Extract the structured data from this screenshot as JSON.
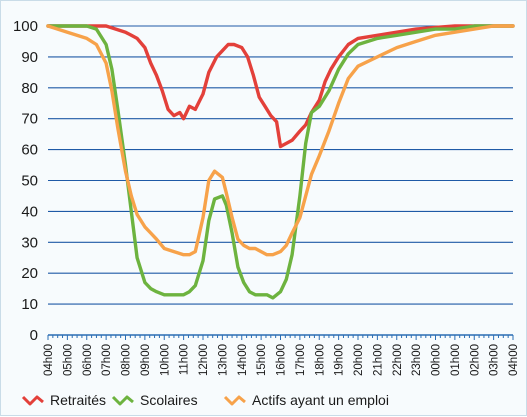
{
  "chart_data": {
    "type": "line",
    "title": "",
    "xlabel": "",
    "ylabel": "",
    "ylim": [
      0,
      100
    ],
    "yticks": [
      0,
      10,
      20,
      30,
      40,
      50,
      60,
      70,
      80,
      90,
      100
    ],
    "grid": true,
    "legend_position": "bottom",
    "categories": [
      "04h00",
      "05h00",
      "06h00",
      "07h00",
      "08h00",
      "09h00",
      "10h00",
      "11h00",
      "12h00",
      "13h00",
      "14h00",
      "15h00",
      "16h00",
      "17h00",
      "18h00",
      "19h00",
      "20h00",
      "21h00",
      "22h00",
      "23h00",
      "00h00",
      "01h00",
      "02h00",
      "03h00",
      "04h00"
    ],
    "x_hours": [
      0,
      1,
      2,
      3,
      4,
      5,
      6,
      7,
      8,
      9,
      10,
      11,
      12,
      13,
      14,
      15,
      16,
      17,
      18,
      19,
      20,
      21,
      22,
      23,
      24
    ],
    "colors": {
      "grid": "#1f5aa6",
      "axis": "#2a6db4",
      "retraites": "#e3403a",
      "scolaires": "#6db33f",
      "actifs": "#f7a24a"
    },
    "series": [
      {
        "name": "Retraités",
        "color": "#e3403a",
        "x": [
          0,
          1,
          2,
          3,
          3.5,
          4,
          4.3,
          4.6,
          5,
          5.3,
          5.6,
          5.9,
          6.2,
          6.5,
          6.8,
          7,
          7.3,
          7.6,
          8,
          8.3,
          8.7,
          9,
          9.3,
          9.6,
          10,
          10.3,
          10.6,
          10.9,
          11.2,
          11.5,
          11.8,
          12,
          12.3,
          12.6,
          13,
          13.3,
          13.6,
          14,
          14.3,
          14.6,
          15,
          15.5,
          16,
          17,
          18,
          19,
          20,
          21,
          22,
          23,
          24
        ],
        "y": [
          100,
          100,
          100,
          100,
          99,
          98,
          97,
          96,
          93,
          88,
          84,
          79,
          73,
          71,
          72,
          70,
          74,
          73,
          78,
          85,
          90,
          92,
          94,
          94,
          93,
          90,
          84,
          77,
          74,
          71,
          69,
          61,
          62,
          63,
          66,
          68,
          72,
          76,
          82,
          86,
          90,
          94,
          96,
          97,
          98,
          99,
          99.5,
          100,
          100,
          100,
          100
        ]
      },
      {
        "name": "Scolaires",
        "color": "#6db33f",
        "x": [
          0,
          1,
          2,
          2.5,
          3,
          3.3,
          3.6,
          4,
          4.3,
          4.6,
          5,
          5.3,
          5.6,
          6,
          6.5,
          7,
          7.3,
          7.6,
          8,
          8.3,
          8.6,
          9,
          9.2,
          9.5,
          9.8,
          10.1,
          10.4,
          10.7,
          11,
          11.3,
          11.6,
          12,
          12.3,
          12.6,
          13,
          13.3,
          13.6,
          14,
          14.5,
          15,
          15.5,
          16,
          17,
          18,
          19,
          20,
          21,
          22,
          23,
          24
        ],
        "y": [
          100,
          100,
          100,
          99,
          94,
          86,
          73,
          55,
          40,
          25,
          17,
          15,
          14,
          13,
          13,
          13,
          14,
          16,
          24,
          37,
          44,
          45,
          42,
          33,
          22,
          17,
          14,
          13,
          13,
          13,
          12,
          14,
          18,
          26,
          45,
          62,
          72,
          74,
          79,
          86,
          91,
          94,
          96,
          97,
          98,
          99,
          99,
          100,
          100,
          100
        ]
      },
      {
        "name": "Actifs ayant un emploi",
        "color": "#f7a24a",
        "x": [
          0,
          1,
          2,
          2.5,
          3,
          3.3,
          3.6,
          4,
          4.3,
          4.6,
          5,
          5.3,
          5.6,
          6,
          6.5,
          7,
          7.3,
          7.6,
          8,
          8.3,
          8.6,
          9,
          9.2,
          9.5,
          9.8,
          10.1,
          10.4,
          10.7,
          11,
          11.3,
          11.6,
          12,
          12.3,
          12.6,
          13,
          13.3,
          13.6,
          14,
          14.5,
          15,
          15.5,
          16,
          17,
          18,
          19,
          20,
          21,
          22,
          23,
          24
        ],
        "y": [
          100,
          98,
          96,
          94,
          88,
          79,
          67,
          53,
          45,
          39,
          35,
          33,
          31,
          28,
          27,
          26,
          26,
          27,
          38,
          50,
          53,
          51,
          46,
          38,
          31,
          29,
          28,
          28,
          27,
          26,
          26,
          27,
          29,
          33,
          38,
          45,
          52,
          58,
          66,
          75,
          83,
          87,
          90,
          93,
          95,
          97,
          98,
          99,
          100,
          100
        ]
      }
    ]
  }
}
